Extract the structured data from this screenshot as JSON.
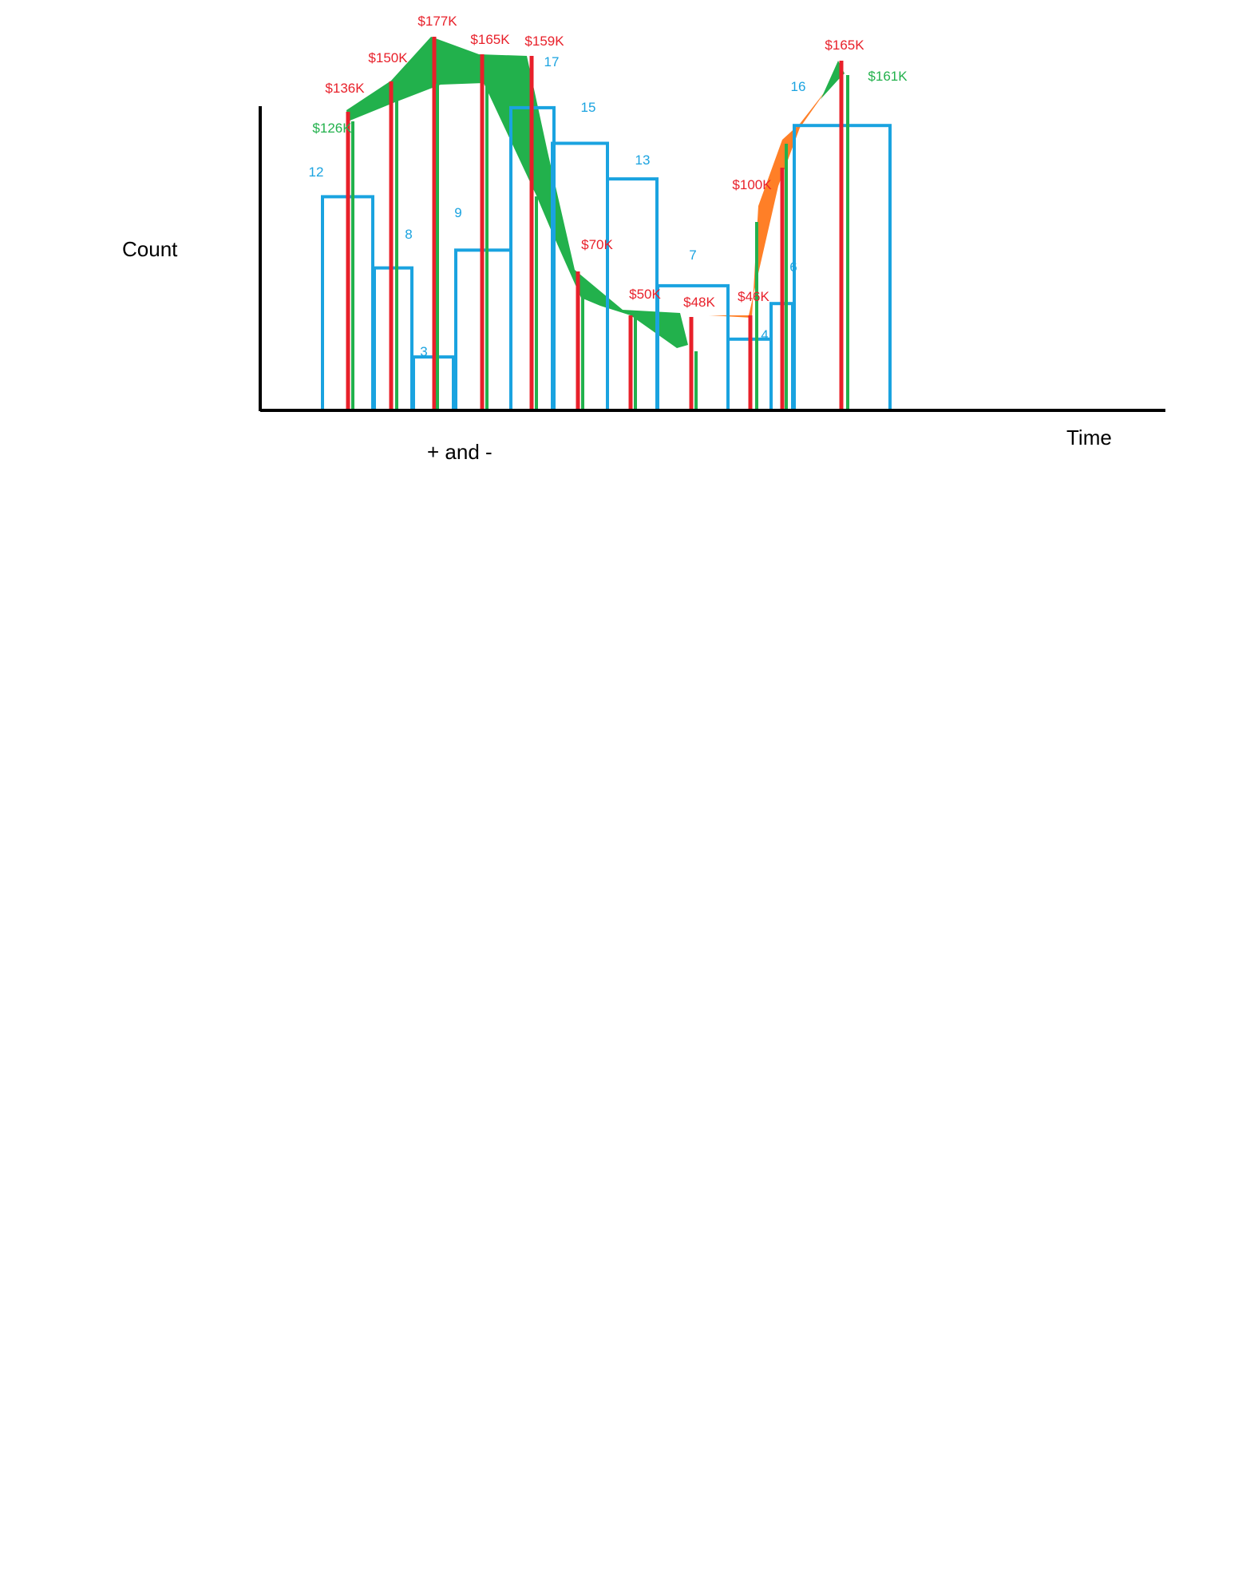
{
  "chart_data": {
    "type": "bar",
    "title": "",
    "ylabel": "Count",
    "xlabel": "Time",
    "annotation": "+ and -",
    "count_bars": [
      12,
      8,
      3,
      9,
      17,
      15,
      13,
      7,
      4,
      6,
      16
    ],
    "red_series": [
      "$136K",
      "$150K",
      "$177K",
      "$165K",
      "$159K",
      "$70K",
      "$50K",
      "$48K",
      "$46K",
      "$100K",
      "$165K"
    ],
    "green_series": [
      "$126K",
      "$161K"
    ],
    "colors": {
      "bars": "#1aa3e0",
      "red": "#e8202a",
      "green": "#22b14c",
      "orange": "#ff7f27",
      "axis": "#000000"
    }
  }
}
